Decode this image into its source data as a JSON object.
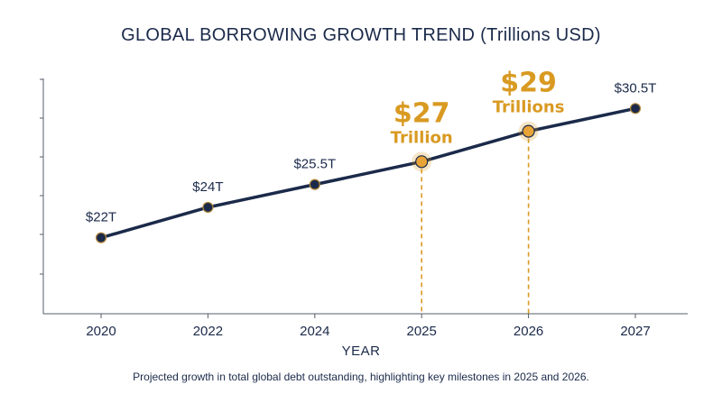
{
  "title": {
    "main": "GLOBAL BORROWING GROWTH TREND",
    "sub": "(Trillions USD)"
  },
  "caption": "Projected growth in total global debt outstanding, highlighting key milestones in 2025 and 2026.",
  "colors": {
    "line": "#1b2a4a",
    "highlight": "#d99a22",
    "marker_fill": "#e8a436"
  },
  "chart_data": {
    "type": "line",
    "x": [
      2020,
      2022,
      2024,
      2025,
      2026,
      2027
    ],
    "xlabel": "YEAR",
    "ylabel": "",
    "ylim": [
      17,
      32
    ],
    "grid": false,
    "series": [
      {
        "values": [
          22,
          24,
          25.5,
          27,
          29,
          30.5
        ]
      }
    ],
    "data_labels": [
      "$22T",
      "$24T",
      "$25.5T",
      "",
      "",
      "$30.5T"
    ],
    "highlights": [
      {
        "x": 2025,
        "value_text": "$27",
        "unit_text": "Trillion"
      },
      {
        "x": 2026,
        "value_text": "$29",
        "unit_text": "Trillions"
      }
    ]
  }
}
